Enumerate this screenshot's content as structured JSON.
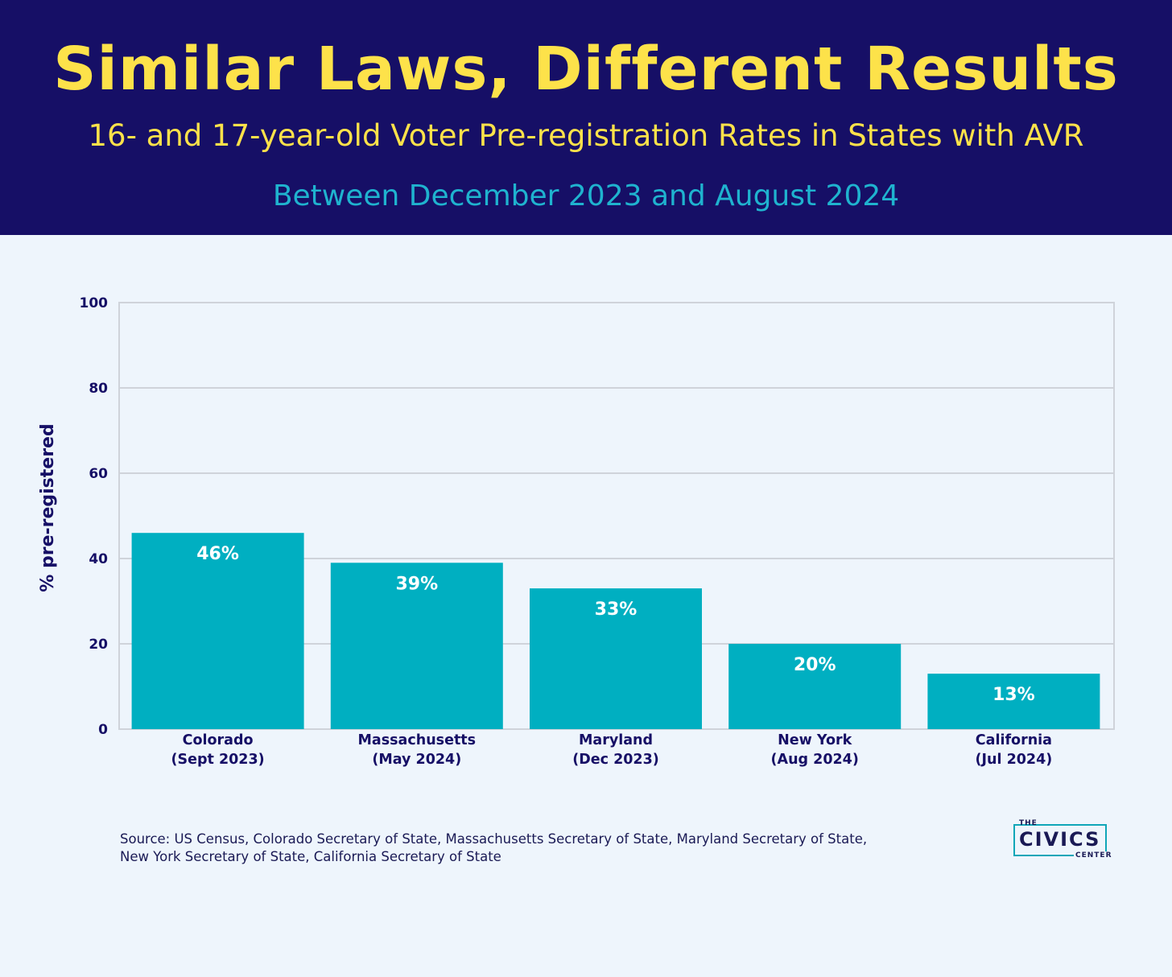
{
  "header": {
    "title": "Similar Laws, Different Results",
    "subtitle": "16- and 17-year-old Voter Pre-registration Rates in States with AVR",
    "date_range": "Between December 2023 and August 2024"
  },
  "colors": {
    "header_bg": "#160f66",
    "title": "#fde24a",
    "date_range": "#1fb3cf",
    "bar": "#00afc1",
    "background": "#eef5fc",
    "axis_text": "#160f66"
  },
  "chart_data": {
    "type": "bar",
    "categories": [
      [
        "Colorado",
        "(Sept 2023)"
      ],
      [
        "Massachusetts",
        "(May 2024)"
      ],
      [
        "Maryland",
        "(Dec 2023)"
      ],
      [
        "New York",
        "(Aug 2024)"
      ],
      [
        "California",
        "(Jul 2024)"
      ]
    ],
    "values": [
      46,
      39,
      33,
      20,
      13
    ],
    "data_labels": [
      "46%",
      "39%",
      "33%",
      "20%",
      "13%"
    ],
    "ylabel": "% pre-registered",
    "xlabel": "",
    "ylim": [
      0,
      100
    ],
    "yticks": [
      0,
      20,
      40,
      60,
      80,
      100
    ],
    "grid": true,
    "legend": "none"
  },
  "source": {
    "line1": "Source: US Census, Colorado Secretary of State, Massachusetts Secretary of State, Maryland Secretary of State,",
    "line2": "New York Secretary of State, California Secretary of State"
  },
  "logo": {
    "the": "THE",
    "name": "CIVICS",
    "center": "CENTER"
  }
}
